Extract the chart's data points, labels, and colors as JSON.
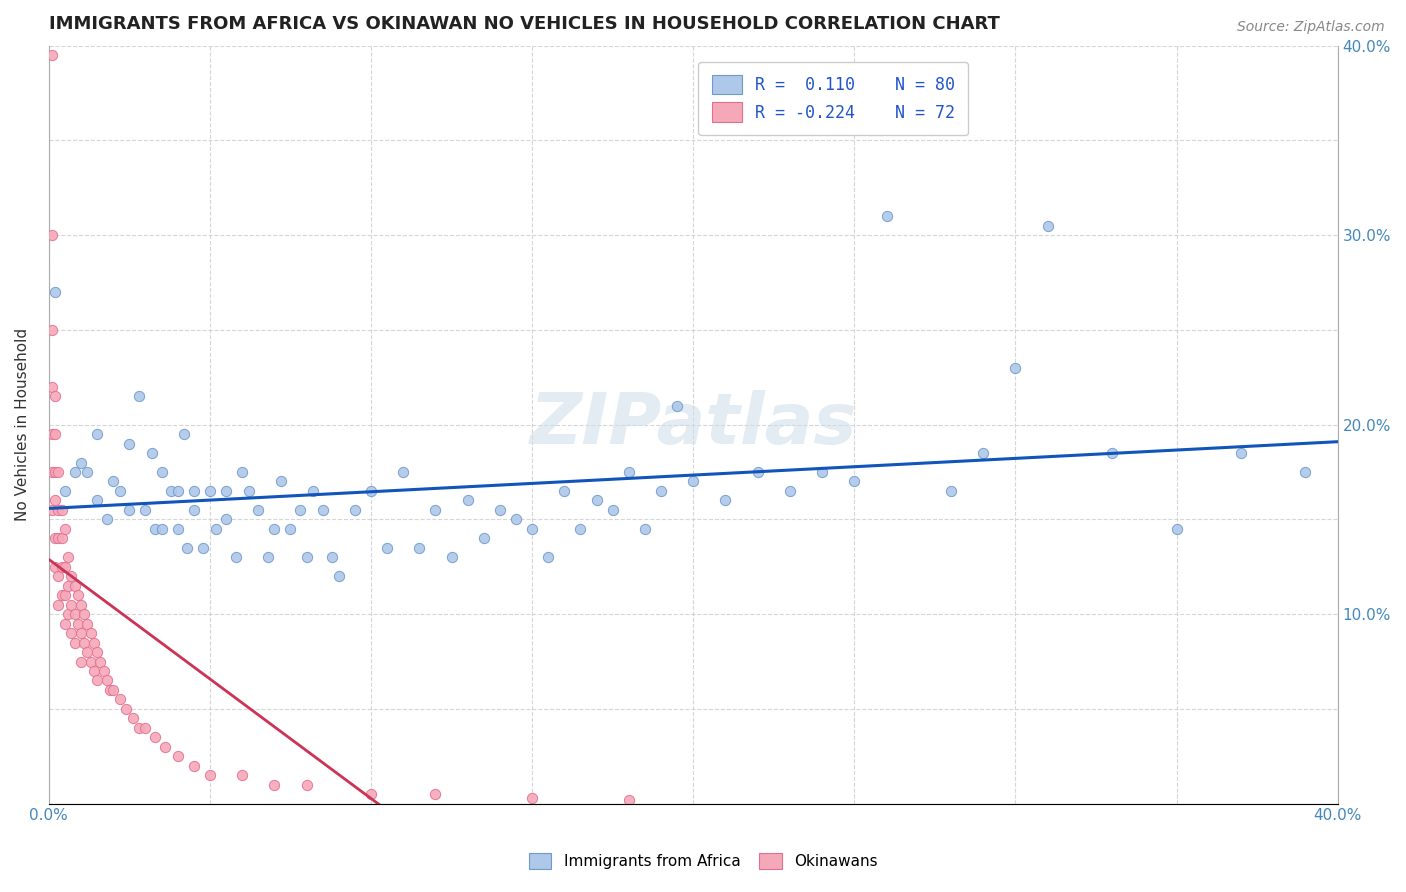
{
  "title": "IMMIGRANTS FROM AFRICA VS OKINAWAN NO VEHICLES IN HOUSEHOLD CORRELATION CHART",
  "source": "Source: ZipAtlas.com",
  "ylabel": "No Vehicles in Household",
  "xlim": [
    0.0,
    0.4
  ],
  "ylim": [
    0.0,
    0.4
  ],
  "xticks": [
    0.0,
    0.05,
    0.1,
    0.15,
    0.2,
    0.25,
    0.3,
    0.35,
    0.4
  ],
  "yticks": [
    0.0,
    0.05,
    0.1,
    0.15,
    0.2,
    0.25,
    0.3,
    0.35,
    0.4
  ],
  "blue_R": 0.11,
  "blue_N": 80,
  "pink_R": -0.224,
  "pink_N": 72,
  "blue_color": "#adc8e8",
  "blue_edge": "#7099cc",
  "pink_color": "#f5a8b8",
  "pink_edge": "#e07090",
  "blue_trend_color": "#1155bb",
  "pink_trend_color": "#cc3355",
  "watermark": "ZIPatlas",
  "watermark_color": "#ccdde8",
  "blue_scatter_x": [
    0.002,
    0.005,
    0.008,
    0.01,
    0.012,
    0.015,
    0.015,
    0.018,
    0.02,
    0.022,
    0.025,
    0.025,
    0.028,
    0.03,
    0.032,
    0.033,
    0.035,
    0.035,
    0.038,
    0.04,
    0.04,
    0.042,
    0.043,
    0.045,
    0.045,
    0.048,
    0.05,
    0.052,
    0.055,
    0.055,
    0.058,
    0.06,
    0.062,
    0.065,
    0.068,
    0.07,
    0.072,
    0.075,
    0.078,
    0.08,
    0.082,
    0.085,
    0.088,
    0.09,
    0.095,
    0.1,
    0.105,
    0.11,
    0.115,
    0.12,
    0.125,
    0.13,
    0.135,
    0.14,
    0.145,
    0.15,
    0.155,
    0.16,
    0.165,
    0.17,
    0.175,
    0.18,
    0.185,
    0.19,
    0.195,
    0.2,
    0.21,
    0.22,
    0.23,
    0.24,
    0.25,
    0.26,
    0.28,
    0.29,
    0.3,
    0.31,
    0.33,
    0.35,
    0.37,
    0.39
  ],
  "blue_scatter_y": [
    0.27,
    0.165,
    0.175,
    0.18,
    0.175,
    0.16,
    0.195,
    0.15,
    0.17,
    0.165,
    0.155,
    0.19,
    0.215,
    0.155,
    0.185,
    0.145,
    0.145,
    0.175,
    0.165,
    0.165,
    0.145,
    0.195,
    0.135,
    0.165,
    0.155,
    0.135,
    0.165,
    0.145,
    0.15,
    0.165,
    0.13,
    0.175,
    0.165,
    0.155,
    0.13,
    0.145,
    0.17,
    0.145,
    0.155,
    0.13,
    0.165,
    0.155,
    0.13,
    0.12,
    0.155,
    0.165,
    0.135,
    0.175,
    0.135,
    0.155,
    0.13,
    0.16,
    0.14,
    0.155,
    0.15,
    0.145,
    0.13,
    0.165,
    0.145,
    0.16,
    0.155,
    0.175,
    0.145,
    0.165,
    0.21,
    0.17,
    0.16,
    0.175,
    0.165,
    0.175,
    0.17,
    0.31,
    0.165,
    0.185,
    0.23,
    0.305,
    0.185,
    0.145,
    0.185,
    0.175
  ],
  "pink_scatter_x": [
    0.001,
    0.001,
    0.001,
    0.001,
    0.001,
    0.001,
    0.001,
    0.002,
    0.002,
    0.002,
    0.002,
    0.002,
    0.002,
    0.003,
    0.003,
    0.003,
    0.003,
    0.003,
    0.004,
    0.004,
    0.004,
    0.004,
    0.005,
    0.005,
    0.005,
    0.005,
    0.006,
    0.006,
    0.006,
    0.007,
    0.007,
    0.007,
    0.008,
    0.008,
    0.008,
    0.009,
    0.009,
    0.01,
    0.01,
    0.01,
    0.011,
    0.011,
    0.012,
    0.012,
    0.013,
    0.013,
    0.014,
    0.014,
    0.015,
    0.015,
    0.016,
    0.017,
    0.018,
    0.019,
    0.02,
    0.022,
    0.024,
    0.026,
    0.028,
    0.03,
    0.033,
    0.036,
    0.04,
    0.045,
    0.05,
    0.06,
    0.07,
    0.08,
    0.1,
    0.12,
    0.15,
    0.18
  ],
  "pink_scatter_y": [
    0.395,
    0.3,
    0.25,
    0.22,
    0.195,
    0.175,
    0.155,
    0.215,
    0.195,
    0.175,
    0.16,
    0.14,
    0.125,
    0.175,
    0.155,
    0.14,
    0.12,
    0.105,
    0.155,
    0.14,
    0.125,
    0.11,
    0.145,
    0.125,
    0.11,
    0.095,
    0.13,
    0.115,
    0.1,
    0.12,
    0.105,
    0.09,
    0.115,
    0.1,
    0.085,
    0.11,
    0.095,
    0.105,
    0.09,
    0.075,
    0.1,
    0.085,
    0.095,
    0.08,
    0.09,
    0.075,
    0.085,
    0.07,
    0.08,
    0.065,
    0.075,
    0.07,
    0.065,
    0.06,
    0.06,
    0.055,
    0.05,
    0.045,
    0.04,
    0.04,
    0.035,
    0.03,
    0.025,
    0.02,
    0.015,
    0.015,
    0.01,
    0.01,
    0.005,
    0.005,
    0.003,
    0.002
  ]
}
